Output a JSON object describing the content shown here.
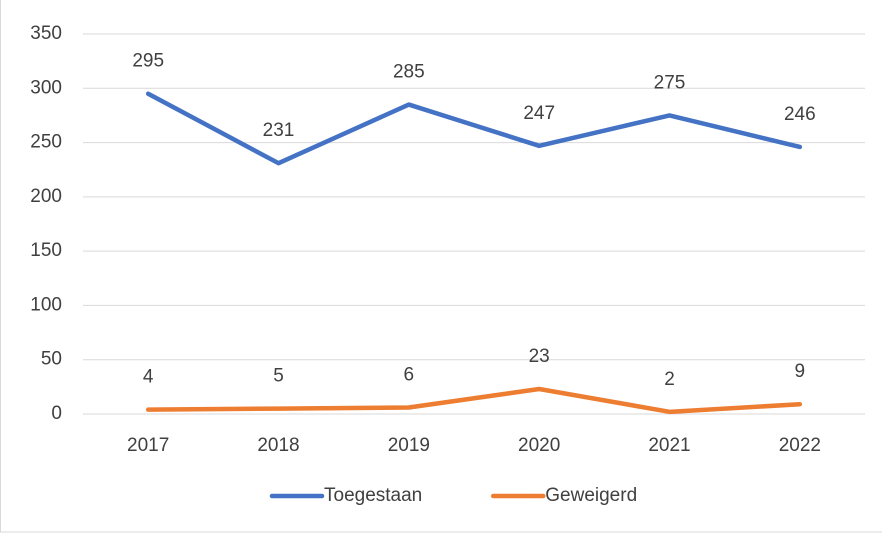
{
  "chart_data": {
    "type": "line",
    "categories": [
      "2017",
      "2018",
      "2019",
      "2020",
      "2021",
      "2022"
    ],
    "series": [
      {
        "name": "Toegestaan",
        "color": "#4472c4",
        "values": [
          295,
          231,
          285,
          247,
          275,
          246
        ]
      },
      {
        "name": "Geweigerd",
        "color": "#ed7d31",
        "values": [
          4,
          5,
          6,
          23,
          2,
          9
        ]
      }
    ],
    "ylim": [
      0,
      350
    ],
    "yticks": [
      0,
      50,
      100,
      150,
      200,
      250,
      300,
      350
    ],
    "grid": true,
    "legend": "bottom",
    "data_labels": true
  }
}
